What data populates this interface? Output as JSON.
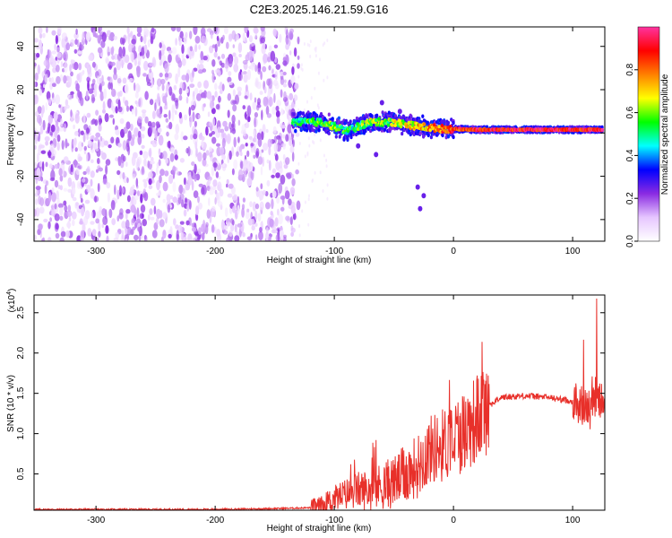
{
  "title": "C2E3.2025.146.21.59.G16",
  "chart_data": [
    {
      "type": "heatmap",
      "xlabel": "Height of straight line (km)",
      "ylabel": "Frequency (Hz)",
      "xlim": [
        -352,
        127
      ],
      "ylim": [
        -50,
        49
      ],
      "xticks": [
        -300,
        -200,
        -100,
        0,
        100
      ],
      "yticks": [
        -40,
        -20,
        0,
        20,
        40
      ],
      "colorbar": {
        "label": "Normalized spectral amplitude",
        "range": [
          0,
          1
        ],
        "ticks": [
          0.0,
          0.2,
          0.4,
          0.6,
          0.8
        ],
        "colors": [
          "#ffffff",
          "#e6c6ff",
          "#8a2be2",
          "#0000ff",
          "#00ffff",
          "#00ff00",
          "#ffff00",
          "#ff8000",
          "#ff0000",
          "#ff33a0"
        ]
      },
      "description_regions": {
        "noise_band": {
          "x_range": [
            -352,
            -130
          ],
          "freq_range": [
            -50,
            49
          ],
          "level": 0.15
        },
        "signal_track": [
          {
            "x": -135,
            "freq": 5,
            "level": 0.5
          },
          {
            "x": -110,
            "freq": 5,
            "level": 0.6
          },
          {
            "x": -90,
            "freq": 1,
            "level": 0.5
          },
          {
            "x": -70,
            "freq": 5,
            "level": 0.6
          },
          {
            "x": -50,
            "freq": 5,
            "level": 0.6
          },
          {
            "x": -30,
            "freq": 3,
            "level": 0.7
          },
          {
            "x": -10,
            "freq": 2,
            "level": 0.8
          },
          {
            "x": 20,
            "freq": 1.5,
            "level": 0.9
          },
          {
            "x": 60,
            "freq": 1.5,
            "level": 0.9
          },
          {
            "x": 100,
            "freq": 1.5,
            "level": 0.9
          },
          {
            "x": 125,
            "freq": 1.5,
            "level": 0.9
          }
        ]
      }
    },
    {
      "type": "line",
      "xlabel": "Height of straight line (km)",
      "ylabel": "SNR (10 * v/v)",
      "y_multiplier": "(x10⁴)",
      "multiplier_base": "(x10",
      "multiplier_exp": "4",
      "multiplier_close": ")",
      "xlim": [
        -352,
        127
      ],
      "ylim": [
        0.05,
        2.72
      ],
      "xticks": [
        -300,
        -200,
        -100,
        0,
        100
      ],
      "yticks": [
        0.5,
        1.0,
        1.5,
        2.0,
        2.5
      ],
      "line_color": "#e8302a",
      "x": [
        -352,
        -300,
        -250,
        -200,
        -150,
        -120,
        -110,
        -100,
        -90,
        -80,
        -70,
        -60,
        -50,
        -40,
        -30,
        -20,
        -10,
        0,
        10,
        20,
        30,
        40,
        60,
        80,
        100,
        110,
        115,
        120,
        127
      ],
      "y": [
        0.06,
        0.06,
        0.06,
        0.06,
        0.07,
        0.08,
        0.1,
        0.2,
        0.25,
        0.3,
        0.3,
        0.35,
        0.4,
        0.5,
        0.6,
        0.8,
        0.85,
        0.95,
        1.05,
        1.2,
        1.35,
        1.45,
        1.47,
        1.45,
        1.4,
        1.35,
        1.3,
        1.4,
        1.38
      ]
    }
  ]
}
